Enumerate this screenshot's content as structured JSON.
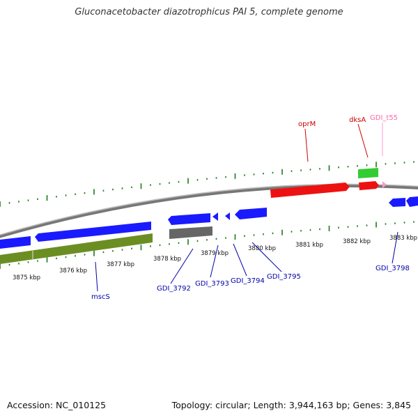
{
  "title": "Gluconacetobacter diazotrophicus PAI 5, complete genome",
  "footer": {
    "accession": "Accession: NC_010125",
    "topology": "Topology: circular; Length: 3,944,163 bp; Genes: 3,845"
  },
  "colors": {
    "forward_gene": "#ff1a1a",
    "reverse_gene": "#1a1aff",
    "rrna_or_trna": "#33cc33",
    "trna_pink": "#ff99cc",
    "cds_olive": "#6b8e23",
    "pseudogene": "#666666",
    "backbone": "#888888",
    "tick": "#1a7a1a",
    "label_forward": "#cc0000",
    "label_reverse": "#0000aa",
    "label_pink": "#ff66aa"
  },
  "scale_labels": [
    "3875 kbp",
    "3876 kbp",
    "3877 kbp",
    "3878 kbp",
    "3879 kbp",
    "3880 kbp",
    "3881 kbp",
    "3882 kbp",
    "3883 kbp"
  ],
  "gene_labels": [
    {
      "text": "oprM",
      "color": "forward"
    },
    {
      "text": "dksA",
      "color": "forward"
    },
    {
      "text": "GDI_t55",
      "color": "pink"
    },
    {
      "text": "mscS",
      "color": "reverse"
    },
    {
      "text": "GDI_3792",
      "color": "reverse"
    },
    {
      "text": "GDI_3793",
      "color": "reverse"
    },
    {
      "text": "GDI_3794",
      "color": "reverse"
    },
    {
      "text": "GDI_3795",
      "color": "reverse"
    },
    {
      "text": "GDI_3798",
      "color": "reverse"
    }
  ]
}
